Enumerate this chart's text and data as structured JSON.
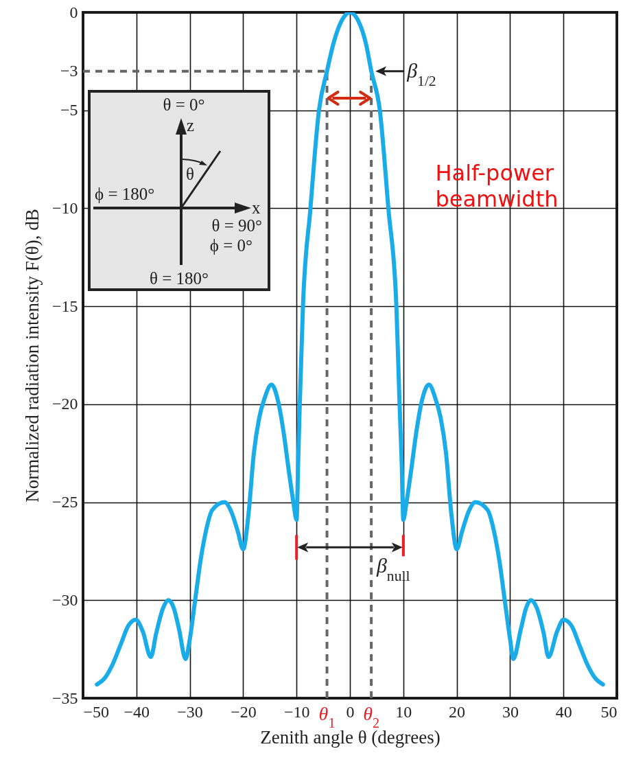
{
  "chart_data": {
    "type": "line",
    "xlabel": "Zenith angle θ (degrees)",
    "ylabel": "Normalized radiation intensity F(θ), dB",
    "x": [
      -47.4,
      -46,
      -44.5,
      -43,
      -41.5,
      -40.1,
      -38.8,
      -37.3,
      -36.3,
      -35,
      -34,
      -33,
      -32,
      -30.8,
      -30,
      -29,
      -28,
      -27,
      -25.8,
      -23.5,
      -22.2,
      -21,
      -20,
      -19,
      -18,
      -17,
      -16,
      -14.7,
      -13.5,
      -12.5,
      -11.5,
      -10.6,
      -10,
      -9.7,
      -9.4,
      -8.8,
      -7.4,
      -5.8,
      -4.3,
      -3,
      -1.5,
      0,
      1.5,
      3,
      4,
      5.6,
      7.2,
      8.7,
      9.3,
      9.7,
      10,
      10.6,
      11.5,
      12.5,
      13.5,
      14.8,
      16,
      17,
      18,
      19,
      20,
      21,
      22.2,
      23.5,
      25.8,
      27,
      28,
      29,
      30,
      30.6,
      32,
      33,
      33.9,
      35,
      36.3,
      37.2,
      38.8,
      40,
      41.5,
      43,
      44.5,
      46,
      47.4
    ],
    "values": [
      -34.3,
      -34,
      -33.3,
      -32.3,
      -31.3,
      -31,
      -31.6,
      -32.9,
      -31.7,
      -30.4,
      -30,
      -30.4,
      -31.5,
      -33,
      -32,
      -30,
      -28,
      -26.5,
      -25.4,
      -25,
      -25.5,
      -26.5,
      -27.4,
      -25.6,
      -22.5,
      -20.7,
      -19.7,
      -19,
      -19.8,
      -21.3,
      -23.3,
      -25,
      -25.9,
      -23,
      -20,
      -15,
      -10,
      -5,
      -3,
      -1.5,
      -0.4,
      0,
      -0.4,
      -1.6,
      -3,
      -5,
      -10,
      -15,
      -20,
      -23,
      -25.9,
      -25,
      -23.3,
      -21.3,
      -19.8,
      -19,
      -19.7,
      -20.7,
      -22.5,
      -25.6,
      -27.4,
      -26.5,
      -25.5,
      -25,
      -25.4,
      -26.5,
      -28,
      -30,
      -32,
      -33,
      -31.5,
      -30.4,
      -30,
      -30.4,
      -31.7,
      -32.9,
      -31.6,
      -31,
      -31.3,
      -32.3,
      -33.3,
      -34,
      -34.3
    ],
    "color": "#19ace8",
    "marker": "none",
    "line_style": "solid",
    "grid": true,
    "xlim": [
      -50,
      50
    ],
    "xticks": [
      -50,
      -40,
      -30,
      -20,
      -10,
      0,
      10,
      20,
      30,
      40,
      50
    ],
    "ylim": [
      -35,
      0
    ],
    "yticks": [
      0,
      -3,
      -5,
      -10,
      -15,
      -20,
      -25,
      -30,
      -35
    ],
    "ref_lines": [
      {
        "axis": "y",
        "value": -3,
        "color": "#666666",
        "line_style": "dashed"
      },
      {
        "axis": "x",
        "value": -4.3,
        "label": "θ$_{1}$",
        "color": "#666666",
        "line_style": "dashed"
      },
      {
        "axis": "x",
        "value": 4,
        "label": "θ$_{2}$",
        "color": "#666666",
        "line_style": "dashed"
      }
    ],
    "annotations": [
      "θ = 0°",
      "z",
      "θ",
      "ϕ = 180°",
      "x",
      "θ = 90°",
      "ϕ = 0°",
      "θ = 180°",
      "β$_{1/2}$",
      "β$_{null}$",
      "Half-power beamwidth"
    ]
  }
}
